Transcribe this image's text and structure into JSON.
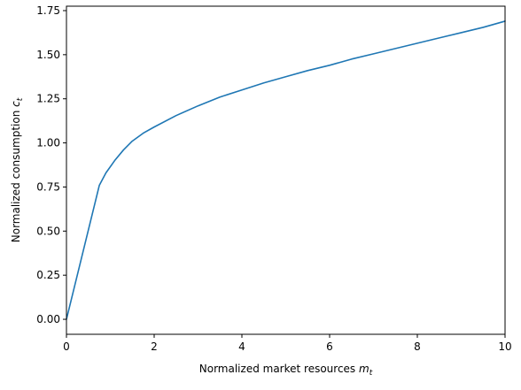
{
  "chart_data": {
    "type": "line",
    "title": "",
    "xlabel": "Normalized market resources ",
    "xlabel_symbol": "m",
    "xlabel_sub": "t",
    "ylabel": "Normalized consumption ",
    "ylabel_symbol": "c",
    "ylabel_sub": "t",
    "xlim": [
      0,
      10
    ],
    "ylim": [
      -0.085,
      1.775
    ],
    "xticks": [
      0,
      2,
      4,
      6,
      8,
      10
    ],
    "xtick_labels": [
      "0",
      "2",
      "4",
      "6",
      "8",
      "10"
    ],
    "yticks": [
      0.0,
      0.25,
      0.5,
      0.75,
      1.0,
      1.25,
      1.5,
      1.75
    ],
    "ytick_labels": [
      "0.00",
      "0.25",
      "0.50",
      "0.75",
      "1.00",
      "1.25",
      "1.50",
      "1.75"
    ],
    "grid": false,
    "legend": "none",
    "series": [
      {
        "color": "#1f77b4",
        "x": [
          0,
          0.75,
          0.9,
          1.1,
          1.3,
          1.5,
          1.75,
          2.0,
          2.5,
          3.0,
          3.5,
          4.0,
          4.5,
          5.0,
          5.5,
          6.0,
          6.5,
          7.0,
          7.5,
          8.0,
          8.5,
          9.0,
          9.5,
          10.0
        ],
        "y": [
          0,
          0.76,
          0.83,
          0.9,
          0.96,
          1.01,
          1.055,
          1.09,
          1.155,
          1.21,
          1.26,
          1.3,
          1.34,
          1.375,
          1.41,
          1.44,
          1.475,
          1.505,
          1.535,
          1.565,
          1.595,
          1.625,
          1.655,
          1.69
        ]
      }
    ]
  }
}
